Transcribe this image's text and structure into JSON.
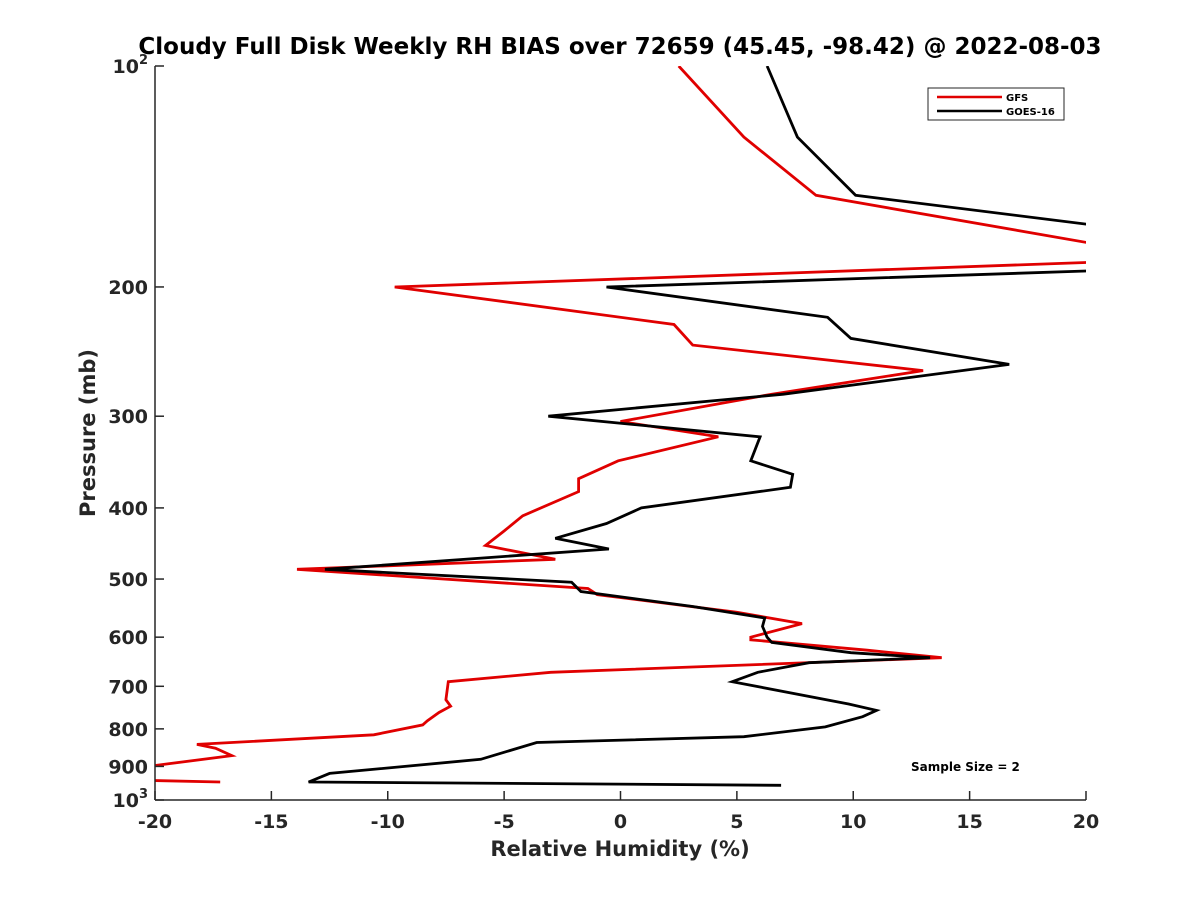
{
  "chart_data": {
    "type": "line",
    "title": "Cloudy Full Disk Weekly RH BIAS over 72659 (45.45, -98.42) @ 2022-08-03",
    "xlabel": "Relative Humidity (%)",
    "ylabel": "Pressure (mb)",
    "xlim": [
      -20,
      20
    ],
    "ylim": [
      100,
      1000
    ],
    "yscale": "log",
    "y_reversed": true,
    "grid": false,
    "legend_position": "top-right",
    "x_ticks": [
      "-20",
      "-15",
      "-10",
      "-5",
      "0",
      "5",
      "10",
      "15",
      "20"
    ],
    "y_ticks": [
      {
        "value": 100,
        "label": "10",
        "sup": "2"
      },
      {
        "value": 200,
        "label": "200"
      },
      {
        "value": 300,
        "label": "300"
      },
      {
        "value": 400,
        "label": "400"
      },
      {
        "value": 500,
        "label": "500"
      },
      {
        "value": 600,
        "label": "600"
      },
      {
        "value": 700,
        "label": "700"
      },
      {
        "value": 800,
        "label": "800"
      },
      {
        "value": 900,
        "label": "900"
      },
      {
        "value": 1000,
        "label": "10",
        "sup": "3"
      }
    ],
    "annotation": "Sample Size = 2",
    "series": [
      {
        "name": "GFS",
        "color": "#e00000",
        "points": [
          [
            2.5,
            100
          ],
          [
            5.3,
            125
          ],
          [
            8.4,
            150
          ],
          [
            20.5,
            175
          ],
          [
            20.5,
            185
          ],
          [
            -9.7,
            200
          ],
          [
            2.3,
            225
          ],
          [
            3.1,
            240
          ],
          [
            13.0,
            260
          ],
          [
            6.5,
            280
          ],
          [
            0.0,
            305
          ],
          [
            4.2,
            320
          ],
          [
            -0.1,
            345
          ],
          [
            -1.8,
            365
          ],
          [
            -1.8,
            380
          ],
          [
            -4.2,
            410
          ],
          [
            -5.0,
            430
          ],
          [
            -5.8,
            450
          ],
          [
            -2.8,
            470
          ],
          [
            -13.9,
            485
          ],
          [
            -1.4,
            515
          ],
          [
            -1.0,
            525
          ],
          [
            5.0,
            555
          ],
          [
            7.8,
            575
          ],
          [
            5.6,
            600
          ],
          [
            5.6,
            605
          ],
          [
            10.6,
            625
          ],
          [
            13.8,
            640
          ],
          [
            -3.0,
            670
          ],
          [
            -7.4,
            690
          ],
          [
            -7.5,
            730
          ],
          [
            -7.3,
            745
          ],
          [
            -7.8,
            760
          ],
          [
            -8.3,
            780
          ],
          [
            -8.5,
            790
          ],
          [
            -10.6,
            815
          ],
          [
            -18.2,
            840
          ],
          [
            -17.4,
            850
          ],
          [
            -16.7,
            870
          ],
          [
            -20.3,
            900
          ],
          [
            -20.5,
            940
          ],
          [
            -17.2,
            945
          ]
        ]
      },
      {
        "name": "GOES-16",
        "color": "#000000",
        "points": [
          [
            6.3,
            100
          ],
          [
            7.6,
            125
          ],
          [
            10.1,
            150
          ],
          [
            20.5,
            165
          ],
          [
            20.5,
            190
          ],
          [
            -0.6,
            200
          ],
          [
            8.9,
            220
          ],
          [
            9.9,
            235
          ],
          [
            16.7,
            255
          ],
          [
            7.0,
            280
          ],
          [
            -3.1,
            300
          ],
          [
            6.0,
            320
          ],
          [
            5.6,
            345
          ],
          [
            7.4,
            360
          ],
          [
            7.3,
            375
          ],
          [
            0.9,
            400
          ],
          [
            -0.6,
            420
          ],
          [
            -2.8,
            440
          ],
          [
            -0.5,
            455
          ],
          [
            -12.7,
            485
          ],
          [
            -2.1,
            505
          ],
          [
            -1.7,
            520
          ],
          [
            3.1,
            545
          ],
          [
            6.2,
            565
          ],
          [
            6.1,
            580
          ],
          [
            6.3,
            600
          ],
          [
            6.5,
            610
          ],
          [
            9.9,
            630
          ],
          [
            13.3,
            640
          ],
          [
            8.1,
            650
          ],
          [
            5.9,
            670
          ],
          [
            4.8,
            690
          ],
          [
            9.8,
            740
          ],
          [
            11.0,
            755
          ],
          [
            10.4,
            770
          ],
          [
            8.8,
            795
          ],
          [
            5.3,
            820
          ],
          [
            -3.6,
            835
          ],
          [
            -6.0,
            880
          ],
          [
            -12.5,
            920
          ],
          [
            -13.4,
            945
          ],
          [
            6.9,
            955
          ]
        ]
      }
    ]
  }
}
